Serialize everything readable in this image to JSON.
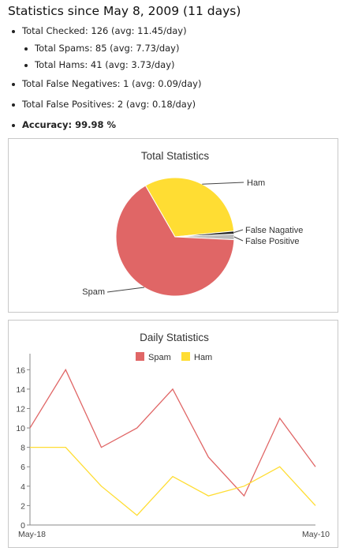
{
  "header": {
    "title": "Statistics since May 8, 2009 (11 days)"
  },
  "stats": {
    "total_checked": "Total Checked: 126 (avg: 11.45/day)",
    "total_spams": "Total Spams: 85 (avg: 7.73/day)",
    "total_hams": "Total Hams: 41 (avg: 3.73/day)",
    "false_negatives": "Total False Negatives: 1 (avg: 0.09/day)",
    "false_positives": "Total False Positives: 2 (avg: 0.18/day)",
    "accuracy": "Accuracy: 99.98 %"
  },
  "colors": {
    "spam": "#e06666",
    "ham": "#ffdd33",
    "false_negative": "#222222",
    "false_positive": "#bbbbbb",
    "border": "#c8c8c8"
  },
  "chart_data": [
    {
      "type": "pie",
      "title": "Total Statistics",
      "slices": [
        {
          "label": "Spam",
          "value": 85
        },
        {
          "label": "Ham",
          "value": 41
        },
        {
          "label": "False Nagative",
          "value": 1
        },
        {
          "label": "False Positive",
          "value": 2
        }
      ]
    },
    {
      "type": "line",
      "title": "Daily Statistics",
      "legend_position": "top",
      "x_first_label": "May-18",
      "x_last_label": "May-10",
      "ylim": [
        0,
        17
      ],
      "yticks": [
        0,
        2,
        4,
        6,
        8,
        10,
        12,
        14,
        16
      ],
      "series": [
        {
          "name": "Spam",
          "values": [
            10,
            16,
            8,
            10,
            14,
            7,
            3,
            11,
            6
          ]
        },
        {
          "name": "Ham",
          "values": [
            8,
            8,
            4,
            1,
            5,
            3,
            4,
            6,
            2
          ]
        }
      ]
    }
  ]
}
